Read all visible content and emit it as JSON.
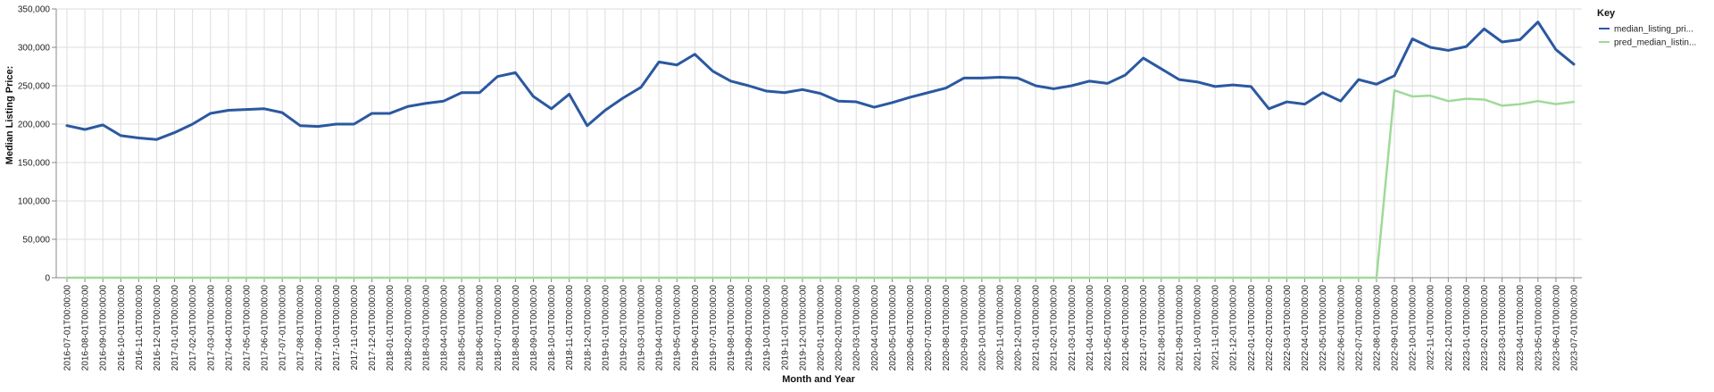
{
  "chart_data": {
    "type": "line",
    "xlabel": "Month and Year",
    "ylabel": "Median Listing Price:",
    "ylim": [
      0,
      350000
    ],
    "y_ticks": [
      "0",
      "50,000",
      "100,000",
      "150,000",
      "200,000",
      "250,000",
      "300,000",
      "350,000"
    ],
    "y_tick_values": [
      0,
      50000,
      100000,
      150000,
      200000,
      250000,
      300000,
      350000
    ],
    "grid": true,
    "legend": {
      "title": "Key",
      "position": "right"
    },
    "x": [
      "2016-07-01T00:00:00",
      "2016-08-01T00:00:00",
      "2016-09-01T00:00:00",
      "2016-10-01T00:00:00",
      "2016-11-01T00:00:00",
      "2016-12-01T00:00:00",
      "2017-01-01T00:00:00",
      "2017-02-01T00:00:00",
      "2017-03-01T00:00:00",
      "2017-04-01T00:00:00",
      "2017-05-01T00:00:00",
      "2017-06-01T00:00:00",
      "2017-07-01T00:00:00",
      "2017-08-01T00:00:00",
      "2017-09-01T00:00:00",
      "2017-10-01T00:00:00",
      "2017-11-01T00:00:00",
      "2017-12-01T00:00:00",
      "2018-01-01T00:00:00",
      "2018-02-01T00:00:00",
      "2018-03-01T00:00:00",
      "2018-04-01T00:00:00",
      "2018-05-01T00:00:00",
      "2018-06-01T00:00:00",
      "2018-07-01T00:00:00",
      "2018-08-01T00:00:00",
      "2018-09-01T00:00:00",
      "2018-10-01T00:00:00",
      "2018-11-01T00:00:00",
      "2018-12-01T00:00:00",
      "2019-01-01T00:00:00",
      "2019-02-01T00:00:00",
      "2019-03-01T00:00:00",
      "2019-04-01T00:00:00",
      "2019-05-01T00:00:00",
      "2019-06-01T00:00:00",
      "2019-07-01T00:00:00",
      "2019-08-01T00:00:00",
      "2019-09-01T00:00:00",
      "2019-10-01T00:00:00",
      "2019-11-01T00:00:00",
      "2019-12-01T00:00:00",
      "2020-01-01T00:00:00",
      "2020-02-01T00:00:00",
      "2020-03-01T00:00:00",
      "2020-04-01T00:00:00",
      "2020-05-01T00:00:00",
      "2020-06-01T00:00:00",
      "2020-07-01T00:00:00",
      "2020-08-01T00:00:00",
      "2020-09-01T00:00:00",
      "2020-10-01T00:00:00",
      "2020-11-01T00:00:00",
      "2020-12-01T00:00:00",
      "2021-01-01T00:00:00",
      "2021-02-01T00:00:00",
      "2021-03-01T00:00:00",
      "2021-04-01T00:00:00",
      "2021-05-01T00:00:00",
      "2021-06-01T00:00:00",
      "2021-07-01T00:00:00",
      "2021-08-01T00:00:00",
      "2021-09-01T00:00:00",
      "2021-10-01T00:00:00",
      "2021-11-01T00:00:00",
      "2021-12-01T00:00:00",
      "2022-01-01T00:00:00",
      "2022-02-01T00:00:00",
      "2022-03-01T00:00:00",
      "2022-04-01T00:00:00",
      "2022-05-01T00:00:00",
      "2022-06-01T00:00:00",
      "2022-07-01T00:00:00",
      "2022-08-01T00:00:00",
      "2022-09-01T00:00:00",
      "2022-10-01T00:00:00",
      "2022-11-01T00:00:00",
      "2022-12-01T00:00:00",
      "2023-01-01T00:00:00",
      "2023-02-01T00:00:00",
      "2023-03-01T00:00:00",
      "2023-04-01T00:00:00",
      "2023-05-01T00:00:00",
      "2023-06-01T00:00:00",
      "2023-07-01T00:00:00"
    ],
    "series": [
      {
        "name": "median_listing_pri...",
        "color": "#2b58a0",
        "values": [
          198000,
          193000,
          199000,
          185000,
          182000,
          180000,
          189000,
          200000,
          214000,
          218000,
          219000,
          220000,
          215000,
          198000,
          197000,
          200000,
          200000,
          214000,
          214000,
          223000,
          227000,
          230000,
          241000,
          241000,
          262000,
          267000,
          236000,
          220000,
          239000,
          198000,
          218000,
          234000,
          248000,
          281000,
          277000,
          291000,
          269000,
          256000,
          250000,
          243000,
          241000,
          245000,
          240000,
          230000,
          229000,
          222000,
          228000,
          235000,
          241000,
          247000,
          260000,
          260000,
          261000,
          260000,
          250000,
          246000,
          250000,
          256000,
          253000,
          264000,
          286000,
          272000,
          258000,
          255000,
          249000,
          251000,
          249000,
          220000,
          229000,
          226000,
          241000,
          230000,
          258000,
          252000,
          263000,
          311000,
          300000,
          296000,
          301000,
          324000,
          307000,
          310000,
          333000,
          297000,
          278000
        ]
      },
      {
        "name": "pred_median_listin...",
        "color": "#a0d99a",
        "values": [
          0,
          0,
          0,
          0,
          0,
          0,
          0,
          0,
          0,
          0,
          0,
          0,
          0,
          0,
          0,
          0,
          0,
          0,
          0,
          0,
          0,
          0,
          0,
          0,
          0,
          0,
          0,
          0,
          0,
          0,
          0,
          0,
          0,
          0,
          0,
          0,
          0,
          0,
          0,
          0,
          0,
          0,
          0,
          0,
          0,
          0,
          0,
          0,
          0,
          0,
          0,
          0,
          0,
          0,
          0,
          0,
          0,
          0,
          0,
          0,
          0,
          0,
          0,
          0,
          0,
          0,
          0,
          0,
          0,
          0,
          0,
          0,
          0,
          0,
          244000,
          236000,
          237000,
          230000,
          233000,
          232000,
          224000,
          226000,
          230000,
          226000,
          229000
        ]
      }
    ]
  }
}
